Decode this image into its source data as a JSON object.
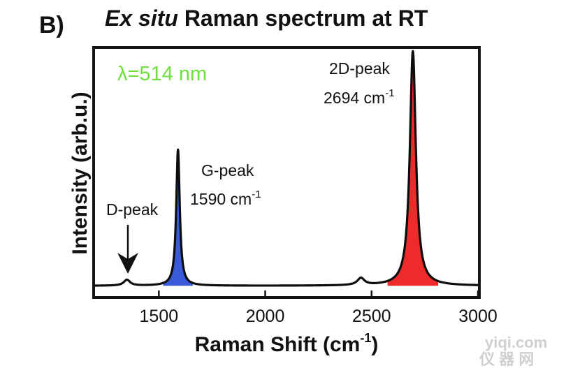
{
  "figure": {
    "panel_label": "B)",
    "title_italic": "Ex situ",
    "title_rest": " Raman spectrum at RT"
  },
  "watermark": {
    "line1": "yiqi.com",
    "line2": "仪 器 网"
  },
  "chart_data": {
    "type": "line",
    "xlabel": "Raman Shift (cm",
    "xlabel_sup": "-1",
    "xlabel_end": ")",
    "ylabel": "Intensity (arb.u.)",
    "xlim": [
      1200,
      3000
    ],
    "ylim": [
      0,
      1
    ],
    "xticks": [
      1500,
      2000,
      2500,
      3000
    ],
    "tick_labels": [
      "1500",
      "2000",
      "2500",
      "3000"
    ],
    "grid": false,
    "wavelength_label": "λ=514 nm",
    "wavelength_color": "#6fe03c",
    "fill_colors": {
      "G": "#3a5bd9",
      "2D": "#ee2b2b",
      "D": "#ffffff"
    },
    "baseline": 0.02,
    "peaks": [
      {
        "id": "D-small",
        "center": 1350,
        "width": 18,
        "height": 0.025,
        "fill": "#ffffff"
      },
      {
        "id": "G",
        "center": 1590,
        "width": 10,
        "height": 0.58,
        "fill": "#3a5bd9"
      },
      {
        "id": "D-prime",
        "center": 2450,
        "width": 20,
        "height": 0.03,
        "fill": "#ffffff"
      },
      {
        "id": "2D",
        "center": 2694,
        "width": 17,
        "height": 1.0,
        "fill": "#ee2b2b"
      }
    ],
    "annotations": [
      {
        "id": "d",
        "line1": "D-peak",
        "line2": ""
      },
      {
        "id": "g",
        "line1": "G-peak",
        "line2": "1590 cm",
        "sup": "-1"
      },
      {
        "id": "2d",
        "line1": "2D-peak",
        "line2": "2694 cm",
        "sup": "-1"
      }
    ]
  }
}
